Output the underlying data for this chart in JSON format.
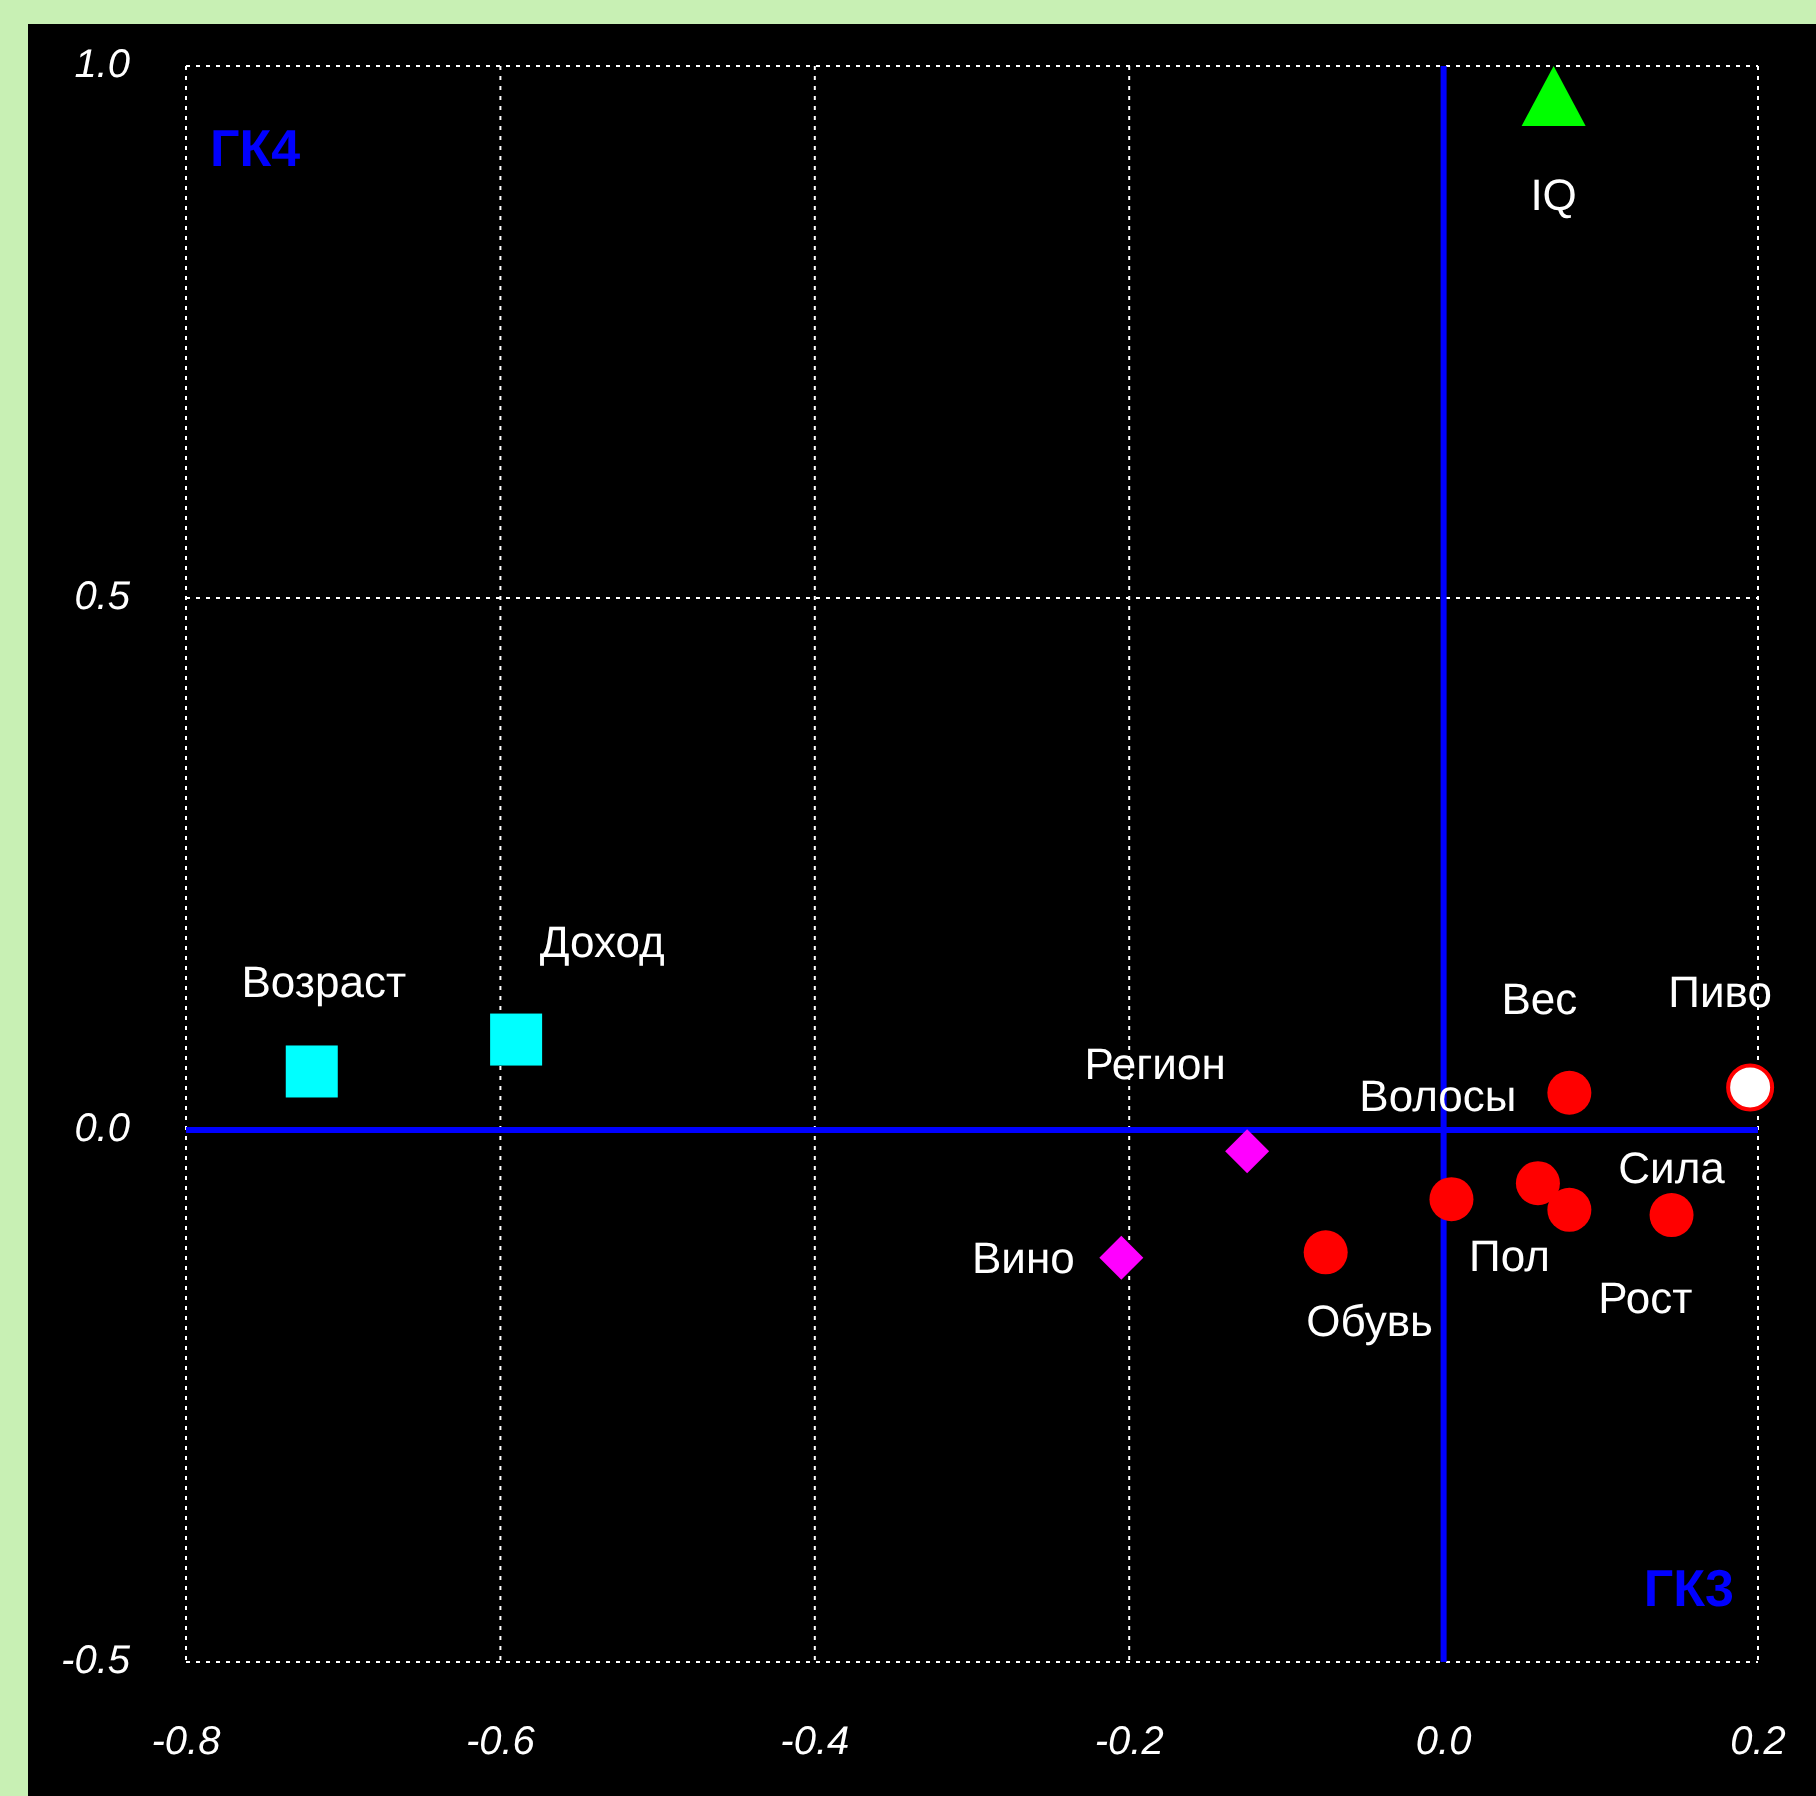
{
  "chart_data": {
    "type": "scatter",
    "xlabel": "ГК3",
    "ylabel": "ГК4",
    "xlim": [
      -0.8,
      0.2
    ],
    "ylim": [
      -0.5,
      1.0
    ],
    "xticks": [
      {
        "value": -0.8,
        "label": "-0.8"
      },
      {
        "value": -0.6,
        "label": "-0.6"
      },
      {
        "value": -0.4,
        "label": "-0.4"
      },
      {
        "value": -0.2,
        "label": "-0.2"
      },
      {
        "value": 0,
        "label": "0.0"
      },
      {
        "value": 0.2,
        "label": "0.2"
      }
    ],
    "yticks": [
      {
        "value": -0.5,
        "label": "-0.5"
      },
      {
        "value": 0,
        "label": "0.0"
      },
      {
        "value": 0.5,
        "label": "0.5"
      },
      {
        "value": 1,
        "label": "1.0"
      }
    ],
    "grid": true,
    "series": [
      {
        "color": "#00ffff",
        "marker": "square",
        "x": [
          -0.72,
          -0.59
        ],
        "values": [
          0.055,
          0.085
        ]
      },
      {
        "color": "#ff00ff",
        "marker": "diamond",
        "x": [
          -0.125,
          -0.205
        ],
        "values": [
          -0.02,
          -0.12
        ]
      },
      {
        "color": "#ff0000",
        "marker": "circle",
        "x": [
          -0.075,
          0.005,
          0.06,
          0.08,
          0.08,
          0.145
        ],
        "values": [
          -0.115,
          -0.065,
          -0.05,
          0.035,
          -0.075,
          -0.08
        ]
      },
      {
        "color": "#ffffff",
        "marker": "circle",
        "x": [
          0.195
        ],
        "values": [
          0.04
        ]
      },
      {
        "color": "#00ff00",
        "marker": "triangle",
        "x": [
          0.07
        ],
        "values": [
          0.97
        ]
      }
    ],
    "annotations": [
      {
        "text": "Возраст",
        "x": -0.72,
        "y": 0.055
      },
      {
        "text": "Доход",
        "x": -0.59,
        "y": 0.085
      },
      {
        "text": "Регион",
        "x": -0.125,
        "y": -0.02
      },
      {
        "text": "Вино",
        "x": -0.205,
        "y": -0.12
      },
      {
        "text": "Обувь",
        "x": -0.075,
        "y": -0.115
      },
      {
        "text": "Пол",
        "x": 0.005,
        "y": -0.065
      },
      {
        "text": "Волосы",
        "x": 0.06,
        "y": -0.05
      },
      {
        "text": "Вес",
        "x": 0.08,
        "y": 0.035
      },
      {
        "text": "Рост",
        "x": 0.08,
        "y": -0.075
      },
      {
        "text": "Сила",
        "x": 0.145,
        "y": -0.08
      },
      {
        "text": "Пиво",
        "x": 0.195,
        "y": 0.04
      },
      {
        "text": "IQ",
        "x": 0.07,
        "y": 0.97
      }
    ]
  }
}
